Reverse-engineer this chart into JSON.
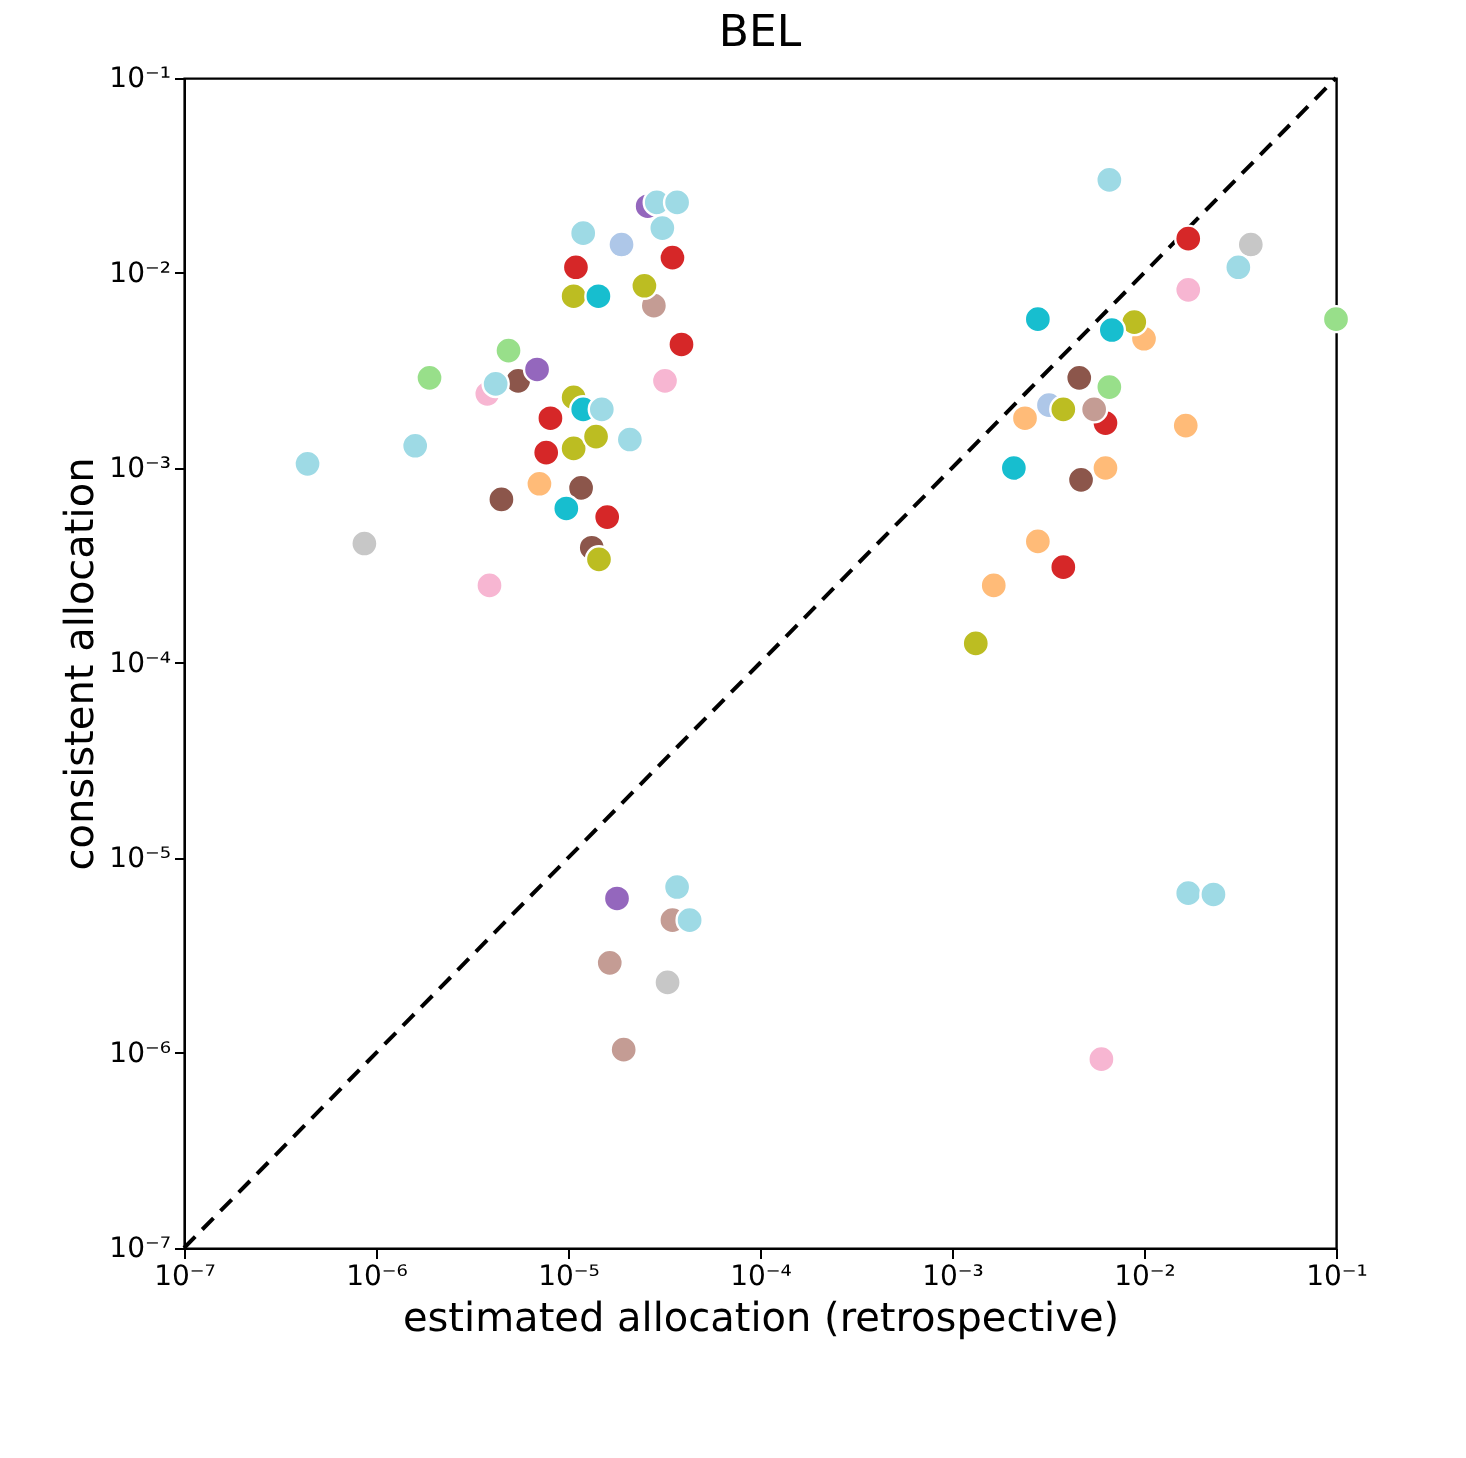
{
  "chart_data": {
    "type": "scatter",
    "title": "BEL",
    "xlabel": "estimated allocation (retrospective)",
    "ylabel": "consistent allocation",
    "log": "xy",
    "grid": false,
    "marker": "circle",
    "xlim": [
      1e-07,
      0.1
    ],
    "ylim": [
      1e-07,
      0.1
    ],
    "xticks": [
      {
        "value": 1e-07,
        "label": "10⁻⁷"
      },
      {
        "value": 1e-06,
        "label": "10⁻⁶"
      },
      {
        "value": 1e-05,
        "label": "10⁻⁵"
      },
      {
        "value": 0.0001,
        "label": "10⁻⁴"
      },
      {
        "value": 0.001,
        "label": "10⁻³"
      },
      {
        "value": 0.01,
        "label": "10⁻²"
      },
      {
        "value": 0.1,
        "label": "10⁻¹"
      }
    ],
    "yticks": [
      {
        "value": 1e-07,
        "label": "10⁻⁷"
      },
      {
        "value": 1e-06,
        "label": "10⁻⁶"
      },
      {
        "value": 1e-05,
        "label": "10⁻⁵"
      },
      {
        "value": 0.0001,
        "label": "10⁻⁴"
      },
      {
        "value": 0.001,
        "label": "10⁻³"
      },
      {
        "value": 0.01,
        "label": "10⁻²"
      },
      {
        "value": 0.1,
        "label": "10⁻¹"
      }
    ],
    "series": [
      {
        "type": "line",
        "color": "#000000",
        "line_style": "dashed",
        "marker": "none",
        "x": [
          1e-07,
          0.1
        ],
        "values": [
          1e-07,
          0.1
        ]
      },
      {
        "color": "#c7c7c7",
        "x": [
          8.7e-07,
          0.036,
          3.3e-05
        ],
        "values": [
          0.00041,
          0.014,
          2.3e-06
        ]
      },
      {
        "color": "#98df8a",
        "x": [
          1.9e-06,
          4.9e-06,
          0.0066,
          0.1
        ],
        "values": [
          0.0029,
          0.004,
          0.0026,
          0.0058
        ]
      },
      {
        "color": "#f7b6d2",
        "x": [
          3.9e-06,
          3.8e-06,
          3.2e-05,
          0.017,
          0.006
        ],
        "values": [
          0.00025,
          0.0024,
          0.0028,
          0.0082,
          9.3e-07
        ]
      },
      {
        "color": "#8c564b",
        "x": [
          5.5e-06,
          4.5e-06,
          1.17e-05,
          1.33e-05,
          0.0046,
          0.0047
        ],
        "values": [
          0.0028,
          0.00069,
          0.00079,
          0.00039,
          0.0029,
          0.00087
        ]
      },
      {
        "color": "#9467bd",
        "x": [
          6.9e-06,
          2.6e-05,
          1.8e-05
        ],
        "values": [
          0.0032,
          0.022,
          6.2e-06
        ]
      },
      {
        "color": "#ffbb78",
        "x": [
          7.1e-06,
          0.01,
          0.0024,
          0.0165,
          0.0063,
          0.0028,
          0.00165
        ],
        "values": [
          0.00083,
          0.0046,
          0.0018,
          0.00165,
          0.001,
          0.00042,
          0.00025
        ]
      },
      {
        "color": "#d62728",
        "x": [
          7.7e-06,
          8.1e-06,
          1.6e-05,
          1.1e-05,
          3.5e-05,
          3.9e-05,
          0.017,
          0.0063,
          0.0038
        ],
        "values": [
          0.0012,
          0.0018,
          0.00056,
          0.0107,
          0.012,
          0.0043,
          0.015,
          0.0017,
          0.00031
        ]
      },
      {
        "color": "#aec7e8",
        "x": [
          1.9e-05,
          0.0032
        ],
        "values": [
          0.014,
          0.0021
        ]
      },
      {
        "color": "#c49c94",
        "x": [
          2.8e-05,
          0.0055,
          3.5e-05,
          1.65e-05,
          1.95e-05
        ],
        "values": [
          0.0068,
          0.002,
          4.8e-06,
          2.9e-06,
          1.04e-06
        ]
      },
      {
        "color": "#bcbd22",
        "x": [
          1.07e-05,
          1.07e-05,
          1.4e-05,
          1.45e-05,
          1.07e-05,
          2.5e-05,
          0.0089,
          0.0038,
          0.00133
        ],
        "values": [
          0.0023,
          0.00126,
          0.00145,
          0.00034,
          0.0076,
          0.0086,
          0.0056,
          0.002,
          0.000126
        ]
      },
      {
        "color": "#17becf",
        "x": [
          1.2e-05,
          9.8e-06,
          1.44e-05,
          0.0028,
          0.0068,
          0.0021
        ],
        "values": [
          0.002,
          0.00062,
          0.0076,
          0.0058,
          0.0051,
          0.001
        ]
      },
      {
        "color": "#9edae5",
        "x": [
          4.4e-07,
          1.6e-06,
          4.2e-06,
          1.5e-05,
          2.1e-05,
          2.9e-05,
          3.7e-05,
          3.1e-05,
          1.2e-05,
          0.0066,
          0.031,
          3.7e-05,
          4.3e-05,
          0.017,
          0.023
        ],
        "values": [
          0.00105,
          0.0013,
          0.0027,
          0.002,
          0.0014,
          0.023,
          0.023,
          0.017,
          0.016,
          0.03,
          0.0107,
          7.1e-06,
          4.8e-06,
          6.6e-06,
          6.5e-06
        ]
      }
    ]
  }
}
